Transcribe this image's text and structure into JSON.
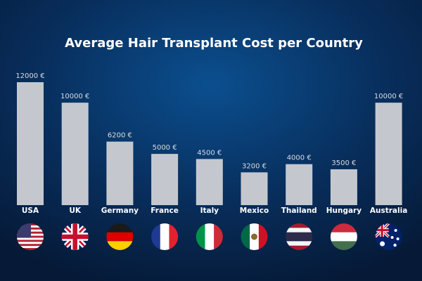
{
  "chart_data": {
    "type": "bar",
    "title": "Average Hair Transplant Cost per Country",
    "categories": [
      "USA",
      "UK",
      "Germany",
      "France",
      "Italy",
      "Mexico",
      "Thailand",
      "Hungary",
      "Australia"
    ],
    "values": [
      12000,
      10000,
      6200,
      5000,
      4500,
      3200,
      4000,
      3500,
      10000
    ],
    "value_labels": [
      "12000 €",
      "10000 €",
      "6200 €",
      "5000 €",
      "4500 €",
      "3200 €",
      "4000 €",
      "3500 €",
      "10000 €"
    ],
    "color": "#c4c8ce"
  }
}
